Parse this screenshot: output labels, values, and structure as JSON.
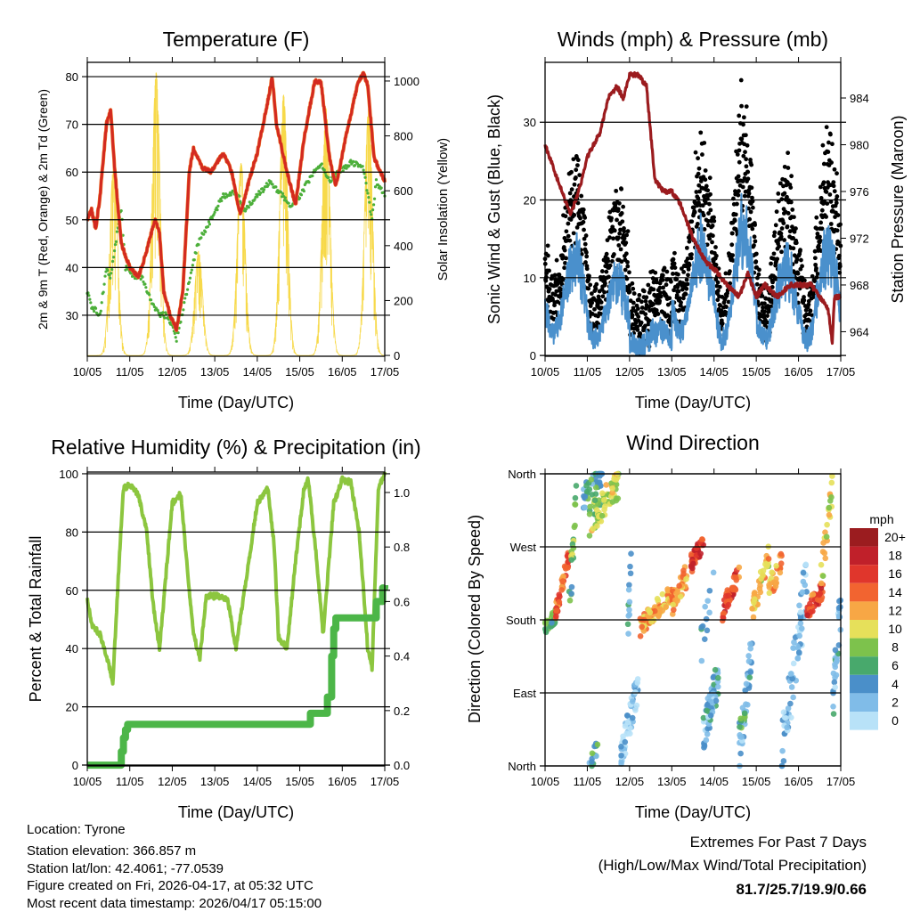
{
  "colors": {
    "temp": "#d32a20",
    "dew": "#4caf3a",
    "solar": "#f7d94a",
    "wind": "#4a90cc",
    "gust": "#000000",
    "pressure": "#9b1b1e",
    "rh": "#8cc63f",
    "precip": "#4cb648",
    "extremes": "#c0202a"
  },
  "x_ticks": [
    "10/05",
    "11/05",
    "12/05",
    "13/05",
    "14/05",
    "15/05",
    "16/05",
    "17/05"
  ],
  "chart_data": [
    {
      "type": "line",
      "title": "Temperature (F)",
      "xlabel": "Time (Day/UTC)",
      "ylabel": "2m & 9m T (Red, Orange) & 2m Td (Green)",
      "y2label": "Solar Insolation (Yellow)",
      "xlim": [
        0,
        7
      ],
      "ylim": [
        21.4,
        83
      ],
      "y2lim": [
        -3,
        1068
      ],
      "yticks": [
        30,
        40,
        50,
        60,
        70,
        80
      ],
      "y2ticks": [
        0,
        200,
        400,
        600,
        800,
        1000
      ],
      "grid": true,
      "series": [
        {
          "name": "2m T",
          "x": [
            0,
            0.1,
            0.2,
            0.3,
            0.45,
            0.55,
            0.65,
            0.8,
            1.0,
            1.2,
            1.35,
            1.5,
            1.6,
            1.7,
            1.8,
            1.95,
            2.1,
            2.25,
            2.4,
            2.5,
            2.7,
            2.9,
            3.2,
            3.4,
            3.6,
            3.8,
            4.0,
            4.25,
            4.35,
            4.45,
            4.7,
            4.9,
            5.1,
            5.35,
            5.5,
            5.7,
            5.85,
            6.1,
            6.35,
            6.5,
            6.6,
            6.75,
            7.0
          ],
          "y": [
            50,
            52,
            48,
            55,
            70,
            73,
            60,
            45,
            40,
            38,
            42,
            47,
            50,
            47,
            35,
            30,
            27,
            35,
            60,
            65,
            61,
            60,
            64,
            60,
            51,
            58,
            64,
            75,
            80,
            70,
            60,
            53,
            67,
            79,
            79,
            63,
            57,
            68,
            78,
            81,
            78,
            63,
            58
          ]
        },
        {
          "name": "2m Td",
          "x": [
            0,
            0.1,
            0.3,
            0.45,
            0.55,
            0.75,
            0.8,
            0.9,
            1.1,
            1.3,
            1.5,
            1.7,
            1.9,
            2.1,
            2.3,
            2.6,
            2.9,
            3.2,
            3.5,
            3.7,
            4.0,
            4.3,
            4.5,
            4.8,
            5.0,
            5.2,
            5.5,
            5.7,
            5.9,
            6.2,
            6.5,
            6.7,
            6.8,
            7.0
          ],
          "y": [
            35,
            32,
            30,
            40,
            38,
            50,
            52,
            40,
            38,
            38,
            33,
            30,
            30,
            25,
            33,
            45,
            50,
            55,
            56,
            52,
            55,
            58,
            56,
            53,
            55,
            58,
            62,
            58,
            60,
            62,
            61,
            50,
            58,
            55
          ]
        },
        {
          "name": "Solar Insolation",
          "daily_peak": [
            700,
            1030,
            380,
            700,
            950,
            900,
            900
          ],
          "peak_hour_fraction": 0.62
        }
      ]
    },
    {
      "type": "line",
      "title": "Winds (mph) & Pressure (mb)",
      "xlabel": "Time (Day/UTC)",
      "ylabel": "Sonic Wind & Gust (Blue, Black)",
      "y2label": "Station Pressure (Maroon)",
      "xlim": [
        0,
        7
      ],
      "ylim": [
        -0.1,
        37.7
      ],
      "y2lim": [
        961.9,
        987.05
      ],
      "yticks": [
        0,
        10,
        20,
        30
      ],
      "y2ticks": [
        964,
        968,
        972,
        976,
        980,
        984
      ],
      "grid": true,
      "series": [
        {
          "name": "Sonic Wind",
          "daily_peak": [
            15,
            12,
            4,
            17,
            20,
            14,
            17
          ],
          "nightly_floor": [
            3,
            2,
            1,
            3,
            2,
            2,
            2
          ]
        },
        {
          "name": "Gust",
          "gust_factor": 1.5
        },
        {
          "name": "Station Pressure",
          "x": [
            0,
            0.2,
            0.4,
            0.6,
            0.8,
            1.0,
            1.3,
            1.5,
            1.7,
            1.85,
            2.0,
            2.2,
            2.4,
            2.6,
            2.8,
            3.0,
            3.2,
            3.5,
            3.8,
            4.1,
            4.3,
            4.6,
            4.8,
            5.0,
            5.2,
            5.5,
            5.8,
            6.0,
            6.3,
            6.5,
            6.7,
            6.8,
            6.85,
            7.0
          ],
          "y": [
            980,
            978,
            976,
            974,
            976,
            979,
            981,
            984,
            985,
            984,
            986,
            986,
            985,
            977,
            976,
            976,
            975,
            972,
            970,
            969,
            968,
            967,
            969,
            967,
            968,
            967,
            968,
            968,
            968,
            967,
            966,
            963,
            967,
            967
          ]
        }
      ]
    },
    {
      "type": "line",
      "title": "Relative Humidity (%) & Precipitation (in)",
      "xlabel": "Time (Day/UTC)",
      "ylabel": "Percent & Total Rainfall",
      "xlim": [
        0,
        7
      ],
      "ylim": [
        -0.3,
        100.6
      ],
      "y2lim": [
        -0.003,
        1.075
      ],
      "yticks": [
        0,
        20,
        40,
        60,
        80,
        100
      ],
      "y2ticks": [
        "0.0",
        "0.2",
        "0.4",
        "0.6",
        "0.8",
        "1.0"
      ],
      "grid": true,
      "series": [
        {
          "name": "Relative Humidity",
          "x": [
            0,
            0.1,
            0.3,
            0.5,
            0.6,
            0.75,
            0.85,
            1.0,
            1.2,
            1.4,
            1.55,
            1.7,
            1.85,
            2.0,
            2.2,
            2.4,
            2.5,
            2.65,
            2.8,
            3.1,
            3.3,
            3.5,
            3.7,
            4.0,
            4.25,
            4.4,
            4.5,
            4.7,
            4.9,
            5.1,
            5.2,
            5.4,
            5.55,
            5.8,
            6.0,
            6.2,
            6.4,
            6.6,
            6.7,
            6.85,
            7.0
          ],
          "y": [
            57,
            48,
            45,
            35,
            28,
            70,
            95,
            96,
            93,
            80,
            55,
            40,
            65,
            90,
            93,
            60,
            45,
            37,
            58,
            58,
            57,
            40,
            60,
            90,
            95,
            75,
            44,
            40,
            70,
            95,
            98,
            70,
            45,
            90,
            98,
            97,
            80,
            40,
            33,
            95,
            100
          ]
        },
        {
          "name": "Total Precipitation",
          "x": [
            0,
            0.75,
            0.8,
            0.85,
            0.9,
            0.95,
            5.2,
            5.25,
            5.6,
            5.65,
            5.75,
            5.8,
            5.85,
            6.75,
            6.8,
            6.95,
            7.0
          ],
          "y": [
            0,
            0,
            0.05,
            0.1,
            0.13,
            0.15,
            0.15,
            0.19,
            0.19,
            0.25,
            0.4,
            0.5,
            0.54,
            0.54,
            0.6,
            0.65,
            0.66
          ]
        }
      ]
    },
    {
      "type": "scatter",
      "title": "Wind Direction",
      "xlabel": "Time (Day/UTC)",
      "ylabel": "Direction (Colored By Speed)",
      "xlim": [
        0,
        7
      ],
      "ylim": [
        0,
        360
      ],
      "yticks": [
        0,
        90,
        180,
        270,
        360
      ],
      "yticklabels": [
        "North",
        "East",
        "South",
        "West",
        "North"
      ],
      "grid": true,
      "clusters_columns": [
        "day_start",
        "day_end",
        "dir_start",
        "dir_end",
        "spread_deg",
        "speed_mph",
        "count"
      ],
      "clusters": [
        [
          0,
          0.25,
          170,
          185,
          8,
          6,
          25
        ],
        [
          0.25,
          0.55,
          190,
          255,
          10,
          14,
          40
        ],
        [
          0.55,
          0.75,
          175,
          340,
          30,
          7,
          20
        ],
        [
          0.9,
          1.35,
          330,
          360,
          15,
          5,
          40
        ],
        [
          1.05,
          1.75,
          300,
          350,
          20,
          9,
          70
        ],
        [
          1.05,
          1.25,
          0,
          25,
          10,
          5,
          15
        ],
        [
          1.8,
          2.2,
          10,
          100,
          20,
          2,
          60
        ],
        [
          1.95,
          2.05,
          150,
          300,
          40,
          4,
          12
        ],
        [
          2.25,
          3.0,
          170,
          215,
          12,
          12,
          80
        ],
        [
          3.0,
          3.5,
          200,
          250,
          15,
          12,
          40
        ],
        [
          3.45,
          3.75,
          250,
          275,
          10,
          16,
          40
        ],
        [
          3.75,
          4.1,
          40,
          110,
          25,
          3,
          60
        ],
        [
          3.7,
          4.0,
          150,
          230,
          30,
          3,
          12
        ],
        [
          4.2,
          4.6,
          190,
          240,
          12,
          15,
          40
        ],
        [
          4.6,
          4.9,
          10,
          150,
          25,
          3,
          40
        ],
        [
          4.6,
          4.75,
          50,
          60,
          8,
          7,
          10
        ],
        [
          4.9,
          5.3,
          190,
          260,
          15,
          11,
          40
        ],
        [
          5.3,
          5.6,
          220,
          250,
          15,
          12,
          25
        ],
        [
          5.6,
          6.2,
          20,
          230,
          40,
          2,
          70
        ],
        [
          6.2,
          6.6,
          190,
          220,
          12,
          15,
          40
        ],
        [
          6.5,
          6.8,
          220,
          340,
          20,
          10,
          25
        ],
        [
          6.8,
          7.0,
          70,
          200,
          30,
          3,
          30
        ]
      ],
      "legend": {
        "title": "mph",
        "placement": "right",
        "labels": [
          "20+",
          "18",
          "16",
          "14",
          "12",
          "10",
          "8",
          "6",
          "4",
          "2",
          "0"
        ],
        "colors": [
          "#9b1c1f",
          "#c0202a",
          "#e0362c",
          "#f26430",
          "#f7a745",
          "#e6e05a",
          "#7dc24c",
          "#48a96c",
          "#4a8fc9",
          "#80bce8",
          "#b8e2f8"
        ]
      }
    }
  ],
  "footer": {
    "location": "Location: Tyrone",
    "elevation": "Station elevation: 366.857 m",
    "latlon": "Station lat/lon: 42.4061; -77.0539",
    "created": "Figure created on Fri, 2026-04-17, at 05:32 UTC",
    "timestamp": "Most recent data timestamp: 2026/04/17 05:15:00",
    "extremes_title": "Extremes For Past 7 Days",
    "extremes_subtitle": "(High/Low/Max Wind/Total Precipitation)",
    "extremes_values": "81.7/25.7/19.9/0.66"
  }
}
